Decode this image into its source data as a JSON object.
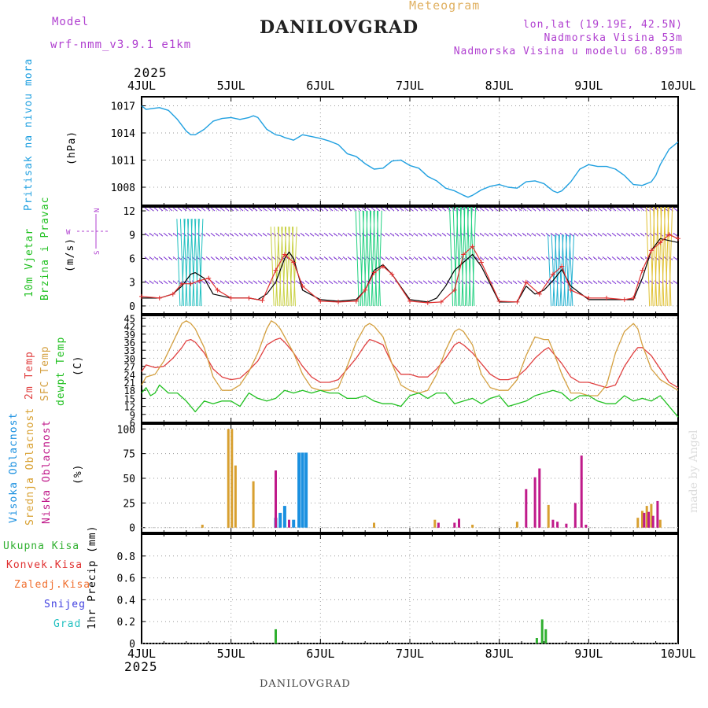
{
  "header": {
    "model_label": "Model",
    "model_name": "wrf-nmm_v3.9.1 e1km",
    "title": "DANILOVGRAD",
    "meteogram_label": "Meteogram",
    "lonlat": "lon,lat (19.19E, 42.5N)",
    "elevation": "Nadmorska Visina 53m",
    "model_elevation": "Nadmorska Visina u modelu 68.895m",
    "year_top": "2025",
    "year_bottom": "2025",
    "footer_title": "DANILOVGRAD",
    "watermark": "made by Angel"
  },
  "colors": {
    "magenta": "#b040d0",
    "title": "#222222",
    "meteogram": "#e0b060",
    "pressure": "#20a0e0",
    "temp2m": "#e04040",
    "sfc": "#d4a040",
    "dew": "#20c020",
    "high_cloud": "#1a90e0",
    "mid_cloud": "#d8a030",
    "low_cloud": "#c01a8a",
    "total_precip": "#30b030",
    "conv_precip": "#e03030",
    "frozen": "#f07030",
    "snow": "#4040e0",
    "hail": "#20c0c0",
    "wind_black": "#000000",
    "wind_red": "#e03030"
  },
  "panels": {
    "pressure": {
      "label": "Pritisak na nivou mora",
      "unit": "(hPa)"
    },
    "wind": {
      "label1": "10m Vjetar",
      "label2": "Brzina i Pravac",
      "unit": "(m/s)",
      "compass_n": "N",
      "compass_s": "S",
      "compass_e": "E",
      "compass_w": "W"
    },
    "temp": {
      "label1": "2m Temp",
      "label2": "SFC Temp",
      "label3": "dewpt Temp",
      "unit": "(C)"
    },
    "cloud": {
      "label1": "Visoka Oblacnost",
      "label2": "Srednja Oblacnost",
      "label3": "Niska Oblacnost",
      "unit": "(%)"
    },
    "precip": {
      "label1": "Ukupna Kisa",
      "label2": "Konvek.Kisa",
      "label3": "Zaledj.Kisa",
      "label4": "Snijeg",
      "label5": "Grad",
      "unit": "1hr Precip (mm)"
    }
  },
  "chart_data": [
    {
      "type": "line",
      "title": "Pritisak na nivou mora",
      "ylabel": "(hPa)",
      "xlabel": "",
      "x_ticks": [
        "4JUL",
        "5JUL",
        "6JUL",
        "7JUL",
        "8JUL",
        "9JUL",
        "10JUL"
      ],
      "xlim": [
        0,
        6
      ],
      "ylim": [
        1006,
        1018
      ],
      "y_ticks": [
        1008,
        1011,
        1014,
        1017
      ],
      "grid": true,
      "series": [
        {
          "name": "",
          "color": "#20a0e0",
          "x": [
            0,
            0.05,
            0.12,
            0.2,
            0.3,
            0.4,
            0.5,
            0.55,
            0.6,
            0.7,
            0.8,
            0.9,
            1.0,
            1.1,
            1.2,
            1.25,
            1.3,
            1.4,
            1.5,
            1.55,
            1.6,
            1.7,
            1.8,
            1.9,
            2.0,
            2.1,
            2.2,
            2.3,
            2.4,
            2.5,
            2.6,
            2.7,
            2.8,
            2.9,
            3.0,
            3.1,
            3.2,
            3.3,
            3.4,
            3.5,
            3.6,
            3.65,
            3.7,
            3.8,
            3.9,
            4.0,
            4.1,
            4.2,
            4.3,
            4.4,
            4.5,
            4.6,
            4.65,
            4.7,
            4.8,
            4.9,
            5.0,
            5.1,
            5.2,
            5.3,
            5.4,
            5.5,
            5.6,
            5.7,
            5.75,
            5.8,
            5.9,
            6.0
          ],
          "y": [
            1017,
            1016.6,
            1016.7,
            1016.8,
            1016.5,
            1015.5,
            1014.2,
            1013.8,
            1013.8,
            1014.4,
            1015.3,
            1015.6,
            1015.7,
            1015.5,
            1015.7,
            1015.9,
            1015.7,
            1014.4,
            1013.8,
            1013.7,
            1013.5,
            1013.2,
            1013.8,
            1013.6,
            1013.4,
            1013.1,
            1012.7,
            1011.7,
            1011.4,
            1010.6,
            1010,
            1010.1,
            1010.9,
            1011,
            1010.4,
            1010.1,
            1009.2,
            1008.7,
            1007.9,
            1007.6,
            1007.1,
            1006.9,
            1007.1,
            1007.7,
            1008.1,
            1008.3,
            1008.0,
            1007.9,
            1008.6,
            1008.7,
            1008.4,
            1007.6,
            1007.4,
            1007.6,
            1008.6,
            1010.0,
            1010.5,
            1010.3,
            1010.3,
            1010.0,
            1009.3,
            1008.3,
            1008.2,
            1008.6,
            1009.3,
            1010.5,
            1012.2,
            1013.0
          ]
        }
      ]
    },
    {
      "type": "line",
      "title": "10m Vjetar Brzina i Pravac",
      "ylabel": "(m/s)",
      "xlabel": "",
      "x_ticks": [
        "4JUL",
        "5JUL",
        "6JUL",
        "7JUL",
        "8JUL",
        "9JUL",
        "10JUL"
      ],
      "xlim": [
        0,
        6
      ],
      "ylim": [
        -1,
        12.5
      ],
      "y_ticks": [
        0,
        3,
        6,
        9,
        12
      ],
      "grid": true,
      "series": [
        {
          "name": "",
          "color": "#000000",
          "x": [
            0,
            0.2,
            0.35,
            0.45,
            0.55,
            0.6,
            0.7,
            0.8,
            1.0,
            1.2,
            1.3,
            1.4,
            1.5,
            1.6,
            1.65,
            1.7,
            1.8,
            2.0,
            2.2,
            2.4,
            2.5,
            2.6,
            2.7,
            2.8,
            3.0,
            3.2,
            3.3,
            3.4,
            3.5,
            3.6,
            3.7,
            3.8,
            4.0,
            4.2,
            4.3,
            4.4,
            4.5,
            4.6,
            4.7,
            4.8,
            5.0,
            5.2,
            5.4,
            5.5,
            5.6,
            5.7,
            5.8,
            6.0
          ],
          "y": [
            1,
            1,
            1.5,
            2.5,
            4,
            4.2,
            3.5,
            1.5,
            1,
            1,
            0.8,
            1.5,
            3,
            6,
            6.8,
            6,
            2,
            0.8,
            0.6,
            0.8,
            2,
            4.5,
            5.2,
            4,
            0.8,
            0.5,
            1,
            2.5,
            4.5,
            5.5,
            6.5,
            5,
            0.5,
            0.5,
            2.5,
            1.5,
            2,
            3.2,
            4.6,
            2.5,
            0.8,
            0.8,
            0.8,
            0.8,
            3.5,
            7,
            8.5,
            8
          ]
        },
        {
          "name": "",
          "color": "#e03030",
          "x": [
            0,
            0.2,
            0.35,
            0.45,
            0.55,
            0.65,
            0.75,
            0.85,
            1.0,
            1.2,
            1.35,
            1.5,
            1.6,
            1.7,
            1.8,
            2.0,
            2.2,
            2.4,
            2.5,
            2.6,
            2.7,
            2.8,
            3.0,
            3.2,
            3.35,
            3.5,
            3.6,
            3.7,
            3.8,
            4.0,
            4.2,
            4.3,
            4.45,
            4.6,
            4.7,
            4.8,
            5.0,
            5.2,
            5.4,
            5.5,
            5.6,
            5.7,
            5.8,
            5.9,
            6.0
          ],
          "y": [
            1.2,
            1.0,
            1.5,
            2.8,
            2.8,
            3.2,
            3.5,
            2.0,
            1.0,
            1.0,
            0.7,
            4.5,
            6.5,
            5.5,
            2.5,
            0.6,
            0.5,
            0.6,
            2.0,
            4.2,
            5.0,
            4.0,
            0.6,
            0.4,
            0.5,
            2.0,
            6.5,
            7.5,
            5.5,
            0.6,
            0.5,
            3.0,
            1.5,
            4.0,
            5.0,
            2.0,
            1.0,
            1.0,
            0.8,
            1.0,
            4.5,
            7.0,
            8.0,
            9.0,
            8.5
          ]
        }
      ]
    },
    {
      "type": "line",
      "title": "2m Temp / SFC Temp / dewpt Temp",
      "ylabel": "(C)",
      "xlabel": "",
      "x_ticks": [
        "4JUL",
        "5JUL",
        "6JUL",
        "7JUL",
        "8JUL",
        "9JUL",
        "10JUL"
      ],
      "xlim": [
        0,
        6
      ],
      "ylim": [
        6,
        46
      ],
      "y_ticks": [
        6,
        9,
        12,
        15,
        18,
        21,
        24,
        27,
        30,
        33,
        36,
        39,
        42,
        45
      ],
      "grid": true,
      "series": [
        {
          "name": "2m Temp",
          "color": "#e04040",
          "x": [
            0,
            0.05,
            0.15,
            0.25,
            0.35,
            0.45,
            0.5,
            0.55,
            0.6,
            0.7,
            0.8,
            0.9,
            1.0,
            1.1,
            1.2,
            1.3,
            1.4,
            1.5,
            1.55,
            1.6,
            1.7,
            1.8,
            1.9,
            2.0,
            2.1,
            2.2,
            2.3,
            2.4,
            2.5,
            2.55,
            2.6,
            2.7,
            2.8,
            2.9,
            3.0,
            3.1,
            3.2,
            3.3,
            3.4,
            3.5,
            3.55,
            3.6,
            3.7,
            3.8,
            3.9,
            4.0,
            4.1,
            4.2,
            4.3,
            4.4,
            4.5,
            4.55,
            4.6,
            4.7,
            4.8,
            4.9,
            5.0,
            5.1,
            5.2,
            5.3,
            5.4,
            5.5,
            5.55,
            5.6,
            5.7,
            5.8,
            5.9,
            6.0
          ],
          "y": [
            25,
            27.5,
            26.5,
            27,
            30,
            34,
            36.5,
            37,
            36,
            32,
            26,
            23,
            22,
            22.5,
            25.5,
            29,
            35,
            37,
            37.5,
            36,
            32,
            27,
            23,
            21,
            21,
            22,
            26,
            30,
            35,
            37,
            36.5,
            35,
            28,
            24,
            24,
            23,
            23,
            26,
            30,
            35,
            36,
            35,
            32,
            28,
            24,
            22,
            22,
            23,
            26,
            30,
            33,
            34,
            32,
            28,
            23,
            21,
            21,
            20,
            19,
            20,
            27,
            32,
            34,
            34,
            31,
            26,
            21,
            19
          ]
        },
        {
          "name": "SFC Temp",
          "color": "#d4a040",
          "x": [
            0,
            0.05,
            0.15,
            0.25,
            0.35,
            0.45,
            0.5,
            0.55,
            0.6,
            0.7,
            0.8,
            0.9,
            1.0,
            1.1,
            1.2,
            1.3,
            1.4,
            1.45,
            1.5,
            1.55,
            1.6,
            1.7,
            1.8,
            1.9,
            2.0,
            2.1,
            2.2,
            2.3,
            2.4,
            2.5,
            2.55,
            2.6,
            2.7,
            2.8,
            2.9,
            3.0,
            3.1,
            3.2,
            3.3,
            3.4,
            3.5,
            3.55,
            3.6,
            3.7,
            3.8,
            3.9,
            4.0,
            4.1,
            4.2,
            4.3,
            4.4,
            4.5,
            4.55,
            4.6,
            4.7,
            4.8,
            4.9,
            5.0,
            5.1,
            5.2,
            5.3,
            5.4,
            5.5,
            5.55,
            5.6,
            5.7,
            5.8,
            5.9,
            6.0
          ],
          "y": [
            20,
            23,
            24,
            29,
            36,
            43,
            44,
            43,
            41,
            34,
            23,
            18,
            18,
            20,
            25,
            32,
            41,
            44,
            43,
            41,
            38,
            32,
            24,
            19,
            18,
            18,
            19,
            27,
            36,
            42,
            43,
            42,
            38,
            28,
            20,
            18,
            17,
            18,
            24,
            33,
            40,
            41,
            40,
            35,
            24,
            19,
            18,
            18,
            22,
            31,
            38,
            37,
            37,
            33,
            24,
            17,
            17,
            16,
            16,
            20,
            32,
            40,
            43,
            41,
            35,
            26,
            22,
            20,
            18
          ]
        },
        {
          "name": "dewpt Temp",
          "color": "#20c020",
          "x": [
            0,
            0.05,
            0.1,
            0.15,
            0.2,
            0.3,
            0.4,
            0.5,
            0.6,
            0.7,
            0.8,
            0.9,
            1.0,
            1.1,
            1.2,
            1.3,
            1.4,
            1.5,
            1.6,
            1.7,
            1.8,
            1.9,
            2.0,
            2.1,
            2.2,
            2.3,
            2.4,
            2.5,
            2.6,
            2.7,
            2.8,
            2.9,
            3.0,
            3.1,
            3.2,
            3.3,
            3.4,
            3.5,
            3.6,
            3.7,
            3.8,
            3.9,
            4.0,
            4.1,
            4.2,
            4.3,
            4.4,
            4.5,
            4.6,
            4.7,
            4.8,
            4.9,
            5.0,
            5.1,
            5.2,
            5.3,
            5.4,
            5.5,
            5.6,
            5.7,
            5.8,
            5.9,
            6.0
          ],
          "y": [
            17,
            19,
            16,
            17,
            20,
            17,
            17,
            14,
            10,
            14,
            13,
            14,
            14,
            12,
            17,
            15,
            14,
            15,
            18,
            17,
            18,
            17,
            18,
            17,
            17,
            15,
            15,
            16,
            14,
            13,
            13,
            12,
            16,
            17,
            15,
            17,
            17,
            13,
            14,
            15,
            13,
            15,
            16,
            12,
            13,
            14,
            16,
            17,
            18,
            17,
            14,
            16,
            16,
            14,
            13,
            13,
            16,
            14,
            15,
            14,
            16,
            12,
            8
          ]
        }
      ]
    },
    {
      "type": "bar",
      "title": "Visoka / Srednja / Niska Oblacnost",
      "ylabel": "(%)",
      "xlabel": "",
      "x_ticks": [
        "4JUL",
        "5JUL",
        "6JUL",
        "7JUL",
        "8JUL",
        "9JUL",
        "10JUL"
      ],
      "xlim": [
        0,
        6
      ],
      "ylim": [
        -5,
        105
      ],
      "y_ticks": [
        0,
        25,
        50,
        75,
        100
      ],
      "grid": true,
      "series": [
        {
          "name": "Visoka Oblacnost",
          "color": "#1a90e0",
          "x": [
            1.5,
            1.55,
            1.6,
            1.7,
            1.76,
            1.8,
            1.84
          ],
          "values": [
            10,
            15,
            22,
            8,
            76,
            76,
            76
          ]
        },
        {
          "name": "Srednja Oblacnost",
          "color": "#d8a030",
          "x": [
            0.68,
            0.97,
            1.01,
            1.05,
            1.25,
            2.6,
            3.28,
            3.7,
            4.2,
            4.55,
            5.55,
            5.6,
            5.65,
            5.7,
            5.8
          ],
          "values": [
            3,
            100,
            100,
            63,
            47,
            5,
            8,
            3,
            6,
            23,
            10,
            17,
            22,
            24,
            8
          ]
        },
        {
          "name": "Niska Oblacnost",
          "color": "#c01a8a",
          "x": [
            1.5,
            1.65,
            3.32,
            3.5,
            3.55,
            4.3,
            4.4,
            4.45,
            4.6,
            4.65,
            4.75,
            4.85,
            4.92,
            4.97,
            5.62,
            5.67,
            5.72,
            5.77
          ],
          "values": [
            58,
            8,
            5,
            5,
            9,
            39,
            51,
            60,
            8,
            6,
            4,
            25,
            73,
            3,
            15,
            16,
            12,
            27
          ]
        }
      ]
    },
    {
      "type": "bar",
      "title": "1hr Precip",
      "ylabel": "1hr Precip (mm)",
      "xlabel": "",
      "x_ticks": [
        "4JUL",
        "5JUL",
        "6JUL",
        "7JUL",
        "8JUL",
        "9JUL",
        "10JUL"
      ],
      "xlim": [
        0,
        6
      ],
      "ylim": [
        0,
        1.0
      ],
      "y_ticks": [
        0,
        0.2,
        0.4,
        0.6,
        0.8
      ],
      "grid": true,
      "series": [
        {
          "name": "Ukupna Kisa",
          "color": "#30b030",
          "x": [
            1.5,
            4.42,
            4.48,
            4.52
          ],
          "values": [
            0.13,
            0.05,
            0.22,
            0.13
          ]
        },
        {
          "name": "Konvek.Kisa",
          "color": "#e03030",
          "x": [],
          "values": []
        },
        {
          "name": "Zaledj.Kisa",
          "color": "#f07030",
          "x": [],
          "values": []
        },
        {
          "name": "Snijeg",
          "color": "#4040e0",
          "x": [],
          "values": []
        },
        {
          "name": "Grad",
          "color": "#20c0c0",
          "x": [],
          "values": []
        }
      ]
    }
  ]
}
